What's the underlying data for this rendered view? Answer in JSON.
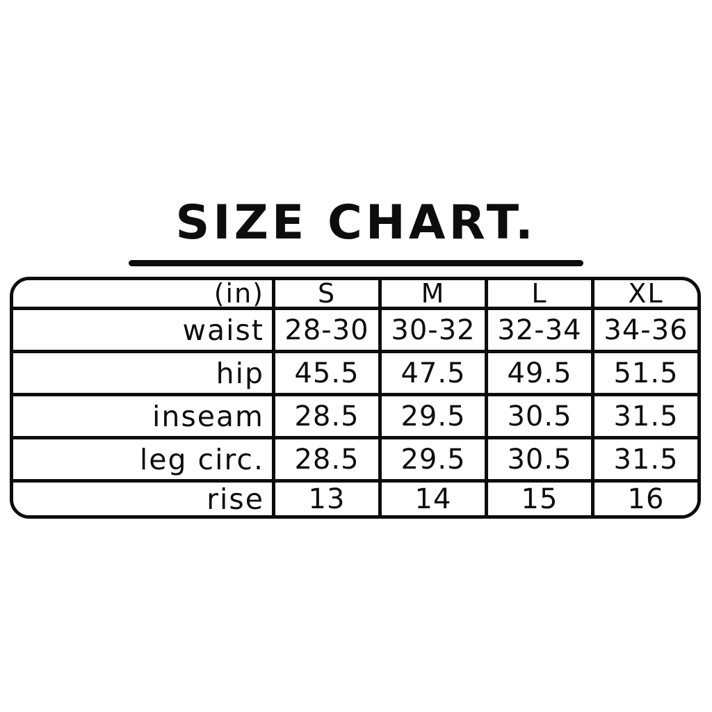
{
  "page_title": "SIZE CHART.",
  "chart_data": {
    "type": "table",
    "title": "SIZE CHART.",
    "unit_label": "(in)",
    "columns": [
      "S",
      "M",
      "L",
      "XL"
    ],
    "rows": [
      {
        "label": "waist",
        "values": [
          "28-30",
          "30-32",
          "32-34",
          "34-36"
        ]
      },
      {
        "label": "hip",
        "values": [
          "45.5",
          "47.5",
          "49.5",
          "51.5"
        ]
      },
      {
        "label": "inseam",
        "values": [
          "28.5",
          "29.5",
          "30.5",
          "31.5"
        ]
      },
      {
        "label": "leg circ.",
        "values": [
          "28.5",
          "29.5",
          "30.5",
          "31.5"
        ]
      },
      {
        "label": "rise",
        "values": [
          "13",
          "14",
          "15",
          "16"
        ]
      }
    ]
  },
  "colors": {
    "text": "#0d0d0d",
    "line": "#0d0d0d",
    "background": "#ffffff"
  }
}
